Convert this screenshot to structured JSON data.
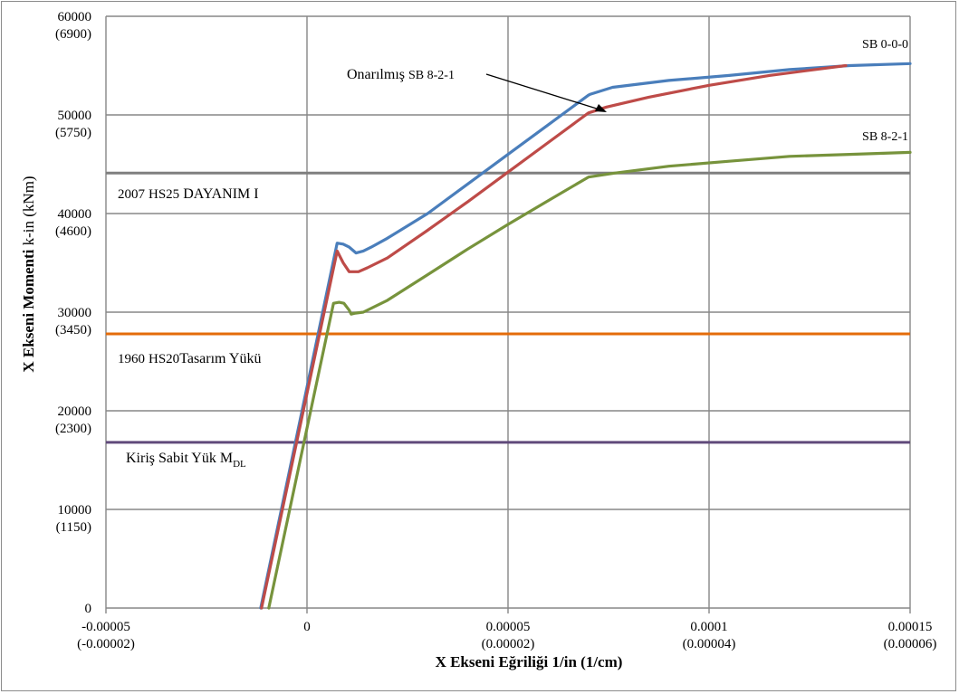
{
  "chart_data": {
    "type": "line",
    "title": "",
    "xlabel": "X Ekseni Eğriliği 1/in (1/cm)",
    "ylabel": "X Ekseni Momenti k-in (kNm)",
    "xlim": [
      -5e-05,
      0.00015
    ],
    "ylim": [
      0,
      60000
    ],
    "grid": true,
    "x_ticks": [
      {
        "value": -5e-05,
        "label": "-0.00005",
        "sublabel": "(-0.00002)"
      },
      {
        "value": 0,
        "label": "0",
        "sublabel": ""
      },
      {
        "value": 5e-05,
        "label": "0.00005",
        "sublabel": "(0.00002)"
      },
      {
        "value": 0.0001,
        "label": "0.0001",
        "sublabel": "(0.00004)"
      },
      {
        "value": 0.00015,
        "label": "0.00015",
        "sublabel": "(0.00006)"
      }
    ],
    "y_ticks": [
      {
        "value": 0,
        "label": "0",
        "sublabel": ""
      },
      {
        "value": 10000,
        "label": "10000",
        "sublabel": "(1150)"
      },
      {
        "value": 20000,
        "label": "20000",
        "sublabel": "(2300)"
      },
      {
        "value": 30000,
        "label": "30000",
        "sublabel": "(3450)"
      },
      {
        "value": 40000,
        "label": "40000",
        "sublabel": "(4600)"
      },
      {
        "value": 50000,
        "label": "50000",
        "sublabel": "(5750)"
      },
      {
        "value": 60000,
        "label": "60000",
        "sublabel": "(6900)"
      }
    ],
    "series": [
      {
        "name": "SB 0-0-0",
        "color": "#4a7ebb",
        "x": [
          -1.15e-05,
          7.5e-06,
          9e-06,
          1.05e-05,
          1.22e-05,
          1.4e-05,
          1.6e-05,
          2e-05,
          3e-05,
          4e-05,
          5e-05,
          6e-05,
          7e-05,
          7.05e-05,
          7.6e-05,
          9e-05,
          0.000105,
          0.00012,
          0.000135,
          0.00015
        ],
        "y": [
          0,
          37000,
          36900,
          36600,
          36000,
          36200,
          36600,
          37500,
          40000,
          43000,
          46000,
          49000,
          52000,
          52100,
          52800,
          53500,
          54000,
          54600,
          55000,
          55200
        ]
      },
      {
        "name": "Onarılmış SB 8-2-1",
        "color": "#be4b48",
        "x": [
          -1.13e-05,
          7.5e-06,
          9e-06,
          1.05e-05,
          1.28e-05,
          1.5e-05,
          2e-05,
          3e-05,
          4e-05,
          5e-05,
          6e-05,
          7e-05,
          7.45e-05,
          8.5e-05,
          0.0001,
          0.000115,
          0.000134
        ],
        "y": [
          0,
          36200,
          35000,
          34100,
          34100,
          34500,
          35500,
          38300,
          41200,
          44200,
          47200,
          50200,
          50800,
          51800,
          53000,
          54000,
          55000
        ]
      },
      {
        "name": "SB 8-2-1",
        "color": "#77933c",
        "x": [
          -9.5e-06,
          6.6e-06,
          8e-06,
          9.2e-06,
          1.05e-05,
          1.1e-05,
          1.2e-05,
          1.4e-05,
          2e-05,
          3e-05,
          4e-05,
          5e-05,
          6e-05,
          7e-05,
          7.65e-05,
          9e-05,
          0.000105,
          0.00012,
          0.000135,
          0.00015
        ],
        "y": [
          0,
          30900,
          31000,
          30900,
          30200,
          29800,
          29900,
          30000,
          31200,
          33800,
          36400,
          38900,
          41300,
          43700,
          44100,
          44800,
          45300,
          45800,
          46000,
          46200
        ]
      }
    ],
    "reference_lines": [
      {
        "name": "2007 HS25 DAYANIM I",
        "y": 44100,
        "color": "#7f7f7f"
      },
      {
        "name": "1960 HS20 Tasarım Yükü",
        "y": 27800,
        "color": "#e46c0a"
      },
      {
        "name": "Kiriş Sabit Yük MDL",
        "y": 16800,
        "color": "#604a7b"
      }
    ],
    "annotations": {
      "label_sb000": "SB 0-0-0",
      "label_sb821": "SB 8-2-1",
      "label_onarilmis_prefix": "Onarılmış",
      "label_onarilmis_suffix": "SB 8-2-1",
      "hs25_label_year": "2007",
      "hs25_label_mid": "HS25",
      "hs25_label_rest": "DAYANIM I",
      "hs20_label_year": "1960",
      "hs20_label_mid": "HS20",
      "hs20_label_rest": "Tasarım Yükü",
      "mdl_label_main": "Kiriş Sabit Yük M",
      "mdl_label_sub": "DL",
      "xlabel_a": "X Ekseni Eğriliği 1/in",
      "xlabel_b": "(1/cm)",
      "ylabel_a": "X Ekseni Momenti",
      "ylabel_b": "k-in (kNm)"
    },
    "colors": {
      "grid": "#878787",
      "axis": "#878787"
    }
  }
}
